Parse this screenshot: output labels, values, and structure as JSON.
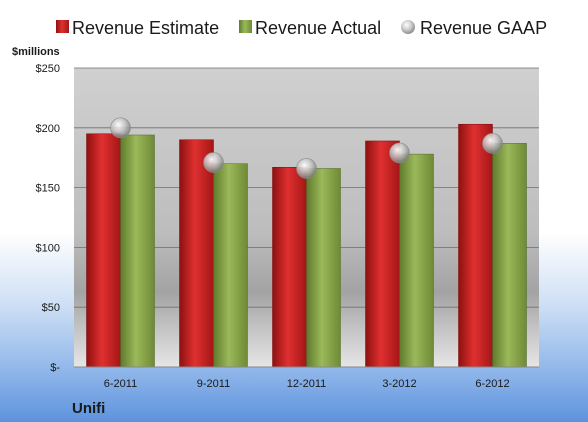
{
  "chart_data": {
    "type": "bar",
    "unit_label": "$millions",
    "company": "Unifi",
    "categories": [
      "6-2011",
      "9-2011",
      "12-2011",
      "3-2012",
      "6-2012"
    ],
    "series": [
      {
        "name": "Revenue Estimate",
        "kind": "bar",
        "color": "#cc1f1f",
        "values": [
          195,
          190,
          167,
          189,
          203
        ]
      },
      {
        "name": "Revenue Actual",
        "kind": "bar",
        "color": "#88a548",
        "values": [
          194,
          170,
          166,
          178,
          187
        ]
      },
      {
        "name": "Revenue GAAP",
        "kind": "marker",
        "color": "#b8b8b8",
        "values": [
          200,
          171,
          166,
          179,
          187
        ]
      }
    ],
    "ylim": [
      0,
      250
    ],
    "yticks": [
      0,
      50,
      100,
      150,
      200,
      250
    ],
    "ytick_labels": [
      "$-",
      "$50",
      "$100",
      "$150",
      "$200",
      "$250"
    ],
    "grid": true,
    "legend_position": "top"
  }
}
